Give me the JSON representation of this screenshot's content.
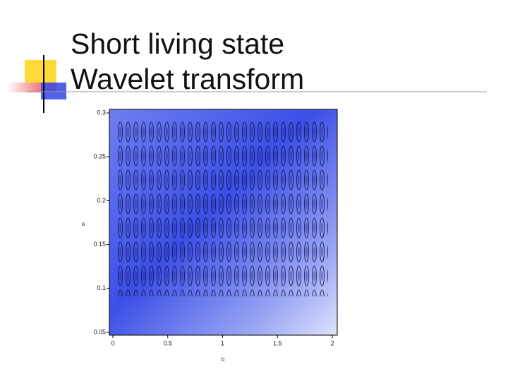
{
  "slide": {
    "title_lines": [
      "Short living state",
      "Wavelet transform"
    ]
  },
  "chart_data": {
    "type": "contour",
    "xlabel": "b",
    "ylabel": "a",
    "xlim": [
      0,
      2
    ],
    "ylim": [
      0.05,
      0.3
    ],
    "xticks": [
      0,
      0.5,
      1,
      1.5,
      2
    ],
    "yticks": [
      0.05,
      0.1,
      0.15,
      0.2,
      0.25,
      0.3
    ]
  }
}
